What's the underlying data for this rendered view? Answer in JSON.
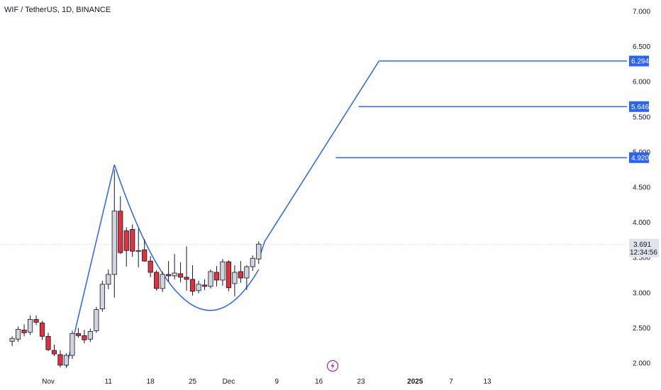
{
  "header": {
    "symbol_title": "WIF / TetherUS, 1D, BINANCE"
  },
  "price_tag": {
    "price": "3.691",
    "countdown": "12:34:56"
  },
  "colors": {
    "up_candle": "#d1d4dc",
    "down_candle": "#e0313f",
    "wick": "#131722",
    "drawing": "#2962ff",
    "target_tag": "#2962ff"
  },
  "chart_data": {
    "type": "candlestick",
    "title": "",
    "xlabel": "",
    "ylabel": "",
    "ylim": [
      1.9,
      7.1
    ],
    "yticks": [
      "2.000",
      "2.500",
      "3.000",
      "3.500",
      "4.000",
      "4.500",
      "5.000",
      "5.500",
      "6.000",
      "6.500",
      "7.000"
    ],
    "xticks": [
      {
        "label": "Nov",
        "day": 0
      },
      {
        "label": "11",
        "day": 10
      },
      {
        "label": "18",
        "day": 17
      },
      {
        "label": "25",
        "day": 24
      },
      {
        "label": "Dec",
        "day": 30
      },
      {
        "label": "9",
        "day": 38
      },
      {
        "label": "16",
        "day": 45
      },
      {
        "label": "23",
        "day": 52
      },
      {
        "label": "2025",
        "day": 61
      },
      {
        "label": "7",
        "day": 67
      },
      {
        "label": "13",
        "day": 73
      }
    ],
    "candles": [
      {
        "day": -6,
        "o": 2.31,
        "h": 2.38,
        "l": 2.24,
        "c": 2.35
      },
      {
        "day": -5,
        "o": 2.34,
        "h": 2.52,
        "l": 2.3,
        "c": 2.48
      },
      {
        "day": -4,
        "o": 2.47,
        "h": 2.55,
        "l": 2.38,
        "c": 2.43
      },
      {
        "day": -3,
        "o": 2.44,
        "h": 2.68,
        "l": 2.4,
        "c": 2.62
      },
      {
        "day": -2,
        "o": 2.62,
        "h": 2.68,
        "l": 2.54,
        "c": 2.58
      },
      {
        "day": -1,
        "o": 2.57,
        "h": 2.6,
        "l": 2.33,
        "c": 2.38
      },
      {
        "day": 0,
        "o": 2.38,
        "h": 2.43,
        "l": 2.17,
        "c": 2.19
      },
      {
        "day": 1,
        "o": 2.18,
        "h": 2.26,
        "l": 2.1,
        "c": 2.13
      },
      {
        "day": 2,
        "o": 2.12,
        "h": 2.18,
        "l": 1.94,
        "c": 1.97
      },
      {
        "day": 3,
        "o": 1.97,
        "h": 2.14,
        "l": 1.95,
        "c": 2.11
      },
      {
        "day": 4,
        "o": 2.11,
        "h": 2.46,
        "l": 2.06,
        "c": 2.42
      },
      {
        "day": 5,
        "o": 2.42,
        "h": 2.5,
        "l": 2.36,
        "c": 2.39
      },
      {
        "day": 6,
        "o": 2.39,
        "h": 2.47,
        "l": 2.28,
        "c": 2.33
      },
      {
        "day": 7,
        "o": 2.34,
        "h": 2.49,
        "l": 2.3,
        "c": 2.45
      },
      {
        "day": 8,
        "o": 2.46,
        "h": 2.8,
        "l": 2.43,
        "c": 2.76
      },
      {
        "day": 9,
        "o": 2.77,
        "h": 3.17,
        "l": 2.73,
        "c": 3.12
      },
      {
        "day": 10,
        "o": 3.12,
        "h": 3.33,
        "l": 3.05,
        "c": 3.26
      },
      {
        "day": 11,
        "o": 3.26,
        "h": 4.75,
        "l": 2.93,
        "c": 4.16
      },
      {
        "day": 12,
        "o": 4.16,
        "h": 4.37,
        "l": 3.55,
        "c": 3.57
      },
      {
        "day": 13,
        "o": 3.88,
        "h": 3.93,
        "l": 3.37,
        "c": 3.6
      },
      {
        "day": 14,
        "o": 3.9,
        "h": 3.97,
        "l": 3.51,
        "c": 3.59
      },
      {
        "day": 15,
        "o": 3.6,
        "h": 3.91,
        "l": 3.36,
        "c": 3.6
      },
      {
        "day": 16,
        "o": 3.61,
        "h": 3.76,
        "l": 3.44,
        "c": 3.45
      },
      {
        "day": 17,
        "o": 3.45,
        "h": 3.52,
        "l": 3.22,
        "c": 3.29
      },
      {
        "day": 18,
        "o": 3.29,
        "h": 3.32,
        "l": 3.03,
        "c": 3.06
      },
      {
        "day": 19,
        "o": 3.06,
        "h": 3.3,
        "l": 3.01,
        "c": 3.26
      },
      {
        "day": 20,
        "o": 3.26,
        "h": 3.45,
        "l": 3.16,
        "c": 3.24
      },
      {
        "day": 21,
        "o": 3.24,
        "h": 3.55,
        "l": 3.19,
        "c": 3.28
      },
      {
        "day": 22,
        "o": 3.27,
        "h": 3.43,
        "l": 3.15,
        "c": 3.22
      },
      {
        "day": 23,
        "o": 3.22,
        "h": 3.66,
        "l": 3.03,
        "c": 3.19
      },
      {
        "day": 24,
        "o": 3.19,
        "h": 3.39,
        "l": 2.96,
        "c": 3.02
      },
      {
        "day": 25,
        "o": 3.03,
        "h": 3.17,
        "l": 2.99,
        "c": 3.12
      },
      {
        "day": 26,
        "o": 3.11,
        "h": 3.19,
        "l": 3.04,
        "c": 3.09
      },
      {
        "day": 27,
        "o": 3.09,
        "h": 3.33,
        "l": 3.06,
        "c": 3.3
      },
      {
        "day": 28,
        "o": 3.29,
        "h": 3.38,
        "l": 3.09,
        "c": 3.18
      },
      {
        "day": 29,
        "o": 3.18,
        "h": 3.48,
        "l": 3.1,
        "c": 3.44
      },
      {
        "day": 30,
        "o": 3.44,
        "h": 3.46,
        "l": 3.02,
        "c": 3.07
      },
      {
        "day": 31,
        "o": 3.13,
        "h": 3.39,
        "l": 2.95,
        "c": 3.29
      },
      {
        "day": 32,
        "o": 3.3,
        "h": 3.45,
        "l": 3.14,
        "c": 3.21
      },
      {
        "day": 33,
        "o": 3.21,
        "h": 3.39,
        "l": 3.04,
        "c": 3.37
      },
      {
        "day": 34,
        "o": 3.37,
        "h": 3.53,
        "l": 3.31,
        "c": 3.49
      },
      {
        "day": 35,
        "o": 3.48,
        "h": 3.73,
        "l": 3.41,
        "c": 3.691
      }
    ],
    "drawings": {
      "rally_line": [
        {
          "day": 3,
          "price": 1.93
        },
        {
          "day": 11,
          "price": 4.82
        }
      ],
      "cup_curve": {
        "from": {
          "day": 11,
          "price": 4.82
        },
        "low": {
          "day": 28.5,
          "price": 2.77
        },
        "to": {
          "day": 35,
          "price": 3.33
        }
      },
      "projection_line": [
        {
          "day": 35.3,
          "price": 3.55
        },
        {
          "day": 36,
          "price": 3.73
        },
        {
          "day": 55,
          "price": 6.294
        }
      ],
      "targets": [
        {
          "label": "6.294",
          "price": 6.294,
          "from_day": 55
        },
        {
          "label": "5.646",
          "price": 5.646,
          "from_day": 51.6
        },
        {
          "label": "4.920",
          "price": 4.92,
          "from_day": 47.8
        }
      ]
    }
  }
}
